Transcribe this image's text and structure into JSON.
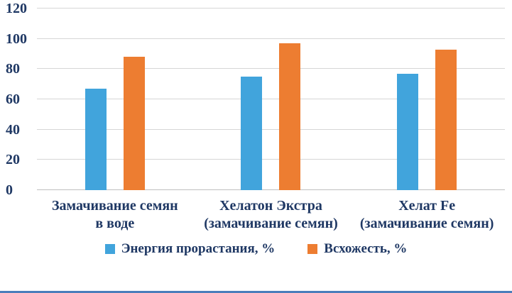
{
  "chart_data": {
    "type": "bar",
    "categories": [
      "Замачивание семян в воде",
      "Хелатон Экстра (замачивание семян)",
      "Хелат Fe (замачивание семян)"
    ],
    "series": [
      {
        "name": "Энергия прорастания, %",
        "color": "#41a4dc",
        "values": [
          67,
          75,
          77
        ]
      },
      {
        "name": "Всхожесть, %",
        "color": "#ed7d31",
        "values": [
          88,
          97,
          93
        ]
      }
    ],
    "title": "",
    "xlabel": "",
    "ylabel": "",
    "ylim": [
      0,
      120
    ],
    "yticks": [
      0,
      20,
      40,
      60,
      80,
      100,
      120
    ],
    "grid": true,
    "legend_position": "bottom"
  },
  "colors": {
    "text": "#1f3864",
    "gridline": "#d6d6d6",
    "axis_line": "#bfbfbf",
    "bottom_rule": "#4a7ebb"
  }
}
